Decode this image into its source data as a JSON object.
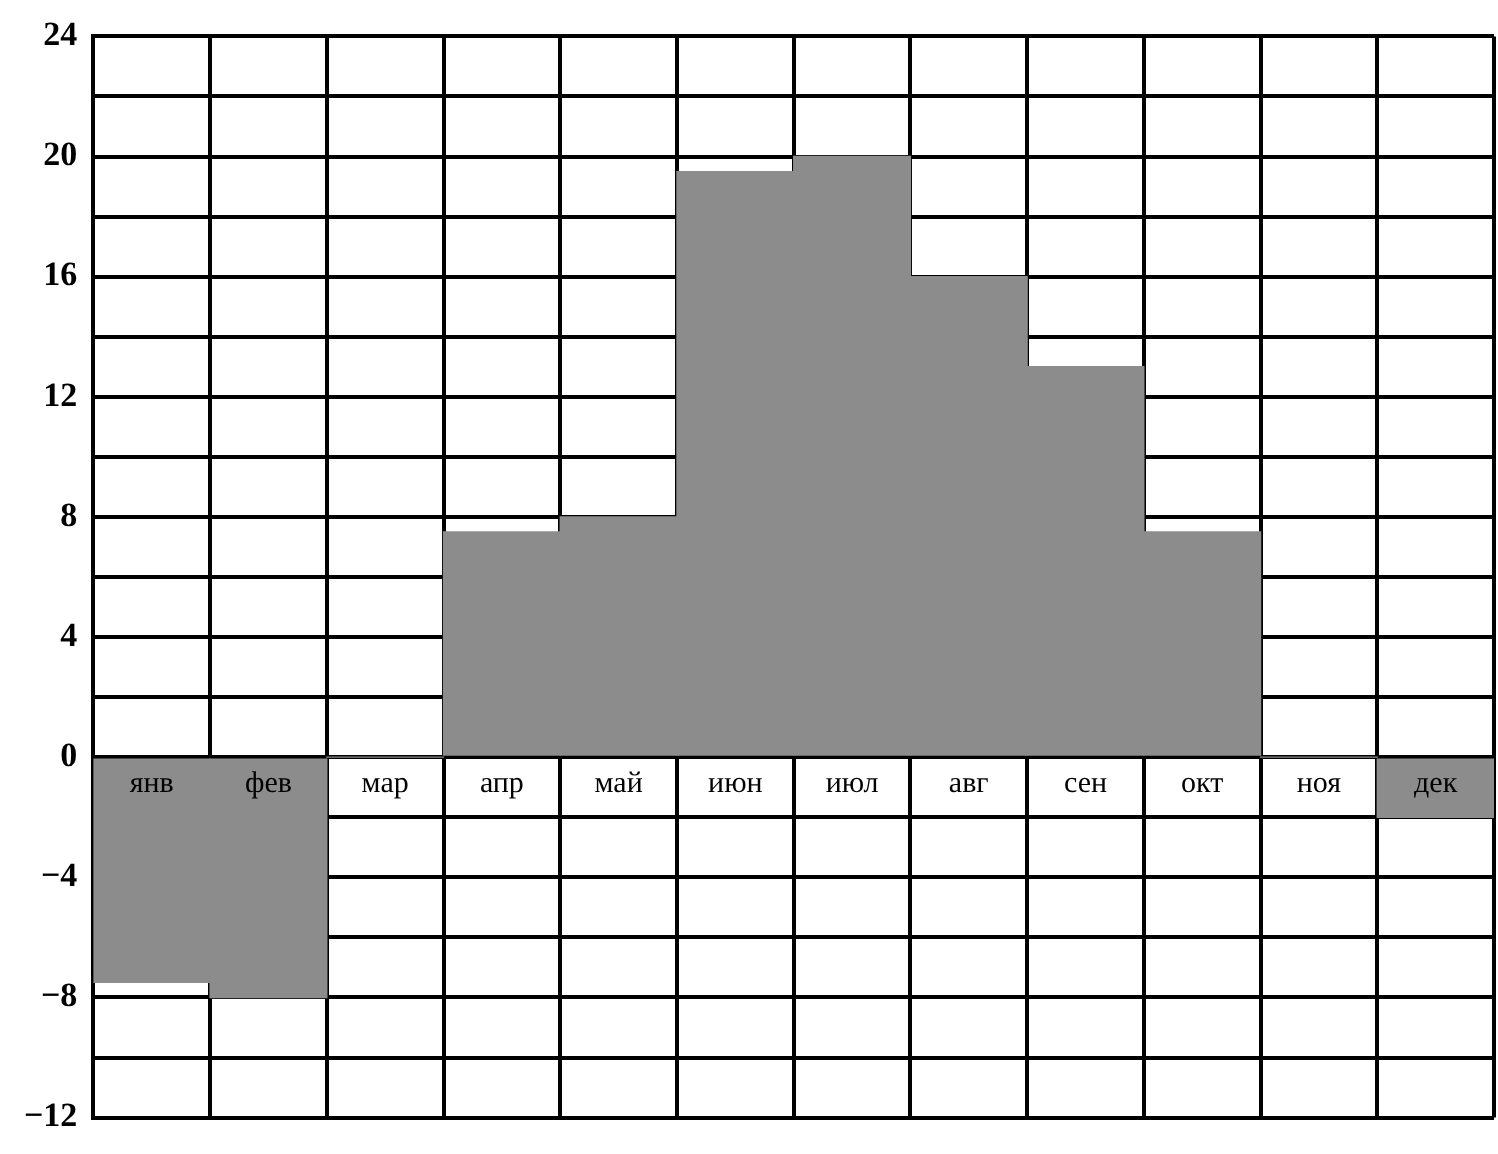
{
  "chart_data": {
    "type": "bar",
    "categories": [
      "янв",
      "фев",
      "мар",
      "апр",
      "май",
      "июн",
      "июл",
      "авг",
      "сен",
      "окт",
      "ноя",
      "дек"
    ],
    "values": [
      -7.5,
      -8,
      0,
      7.5,
      8,
      19.5,
      20,
      16,
      13,
      7.5,
      0,
      -2
    ],
    "color": "#8c8c8c",
    "ylim": [
      -12,
      24
    ],
    "yticks": [
      -12,
      {
        "value": -10,
        "label": null
      },
      -8,
      {
        "value": -6,
        "label": null
      },
      -4,
      {
        "value": -2,
        "label": null
      },
      0,
      {
        "value": 2,
        "label": null
      },
      4,
      {
        "value": 6,
        "label": null
      },
      8,
      {
        "value": 10,
        "label": null
      },
      12,
      {
        "value": 14,
        "label": null
      },
      16,
      {
        "value": 18,
        "label": null
      },
      20,
      {
        "value": 22,
        "label": null
      },
      24
    ],
    "grid": true,
    "legend": false
  }
}
